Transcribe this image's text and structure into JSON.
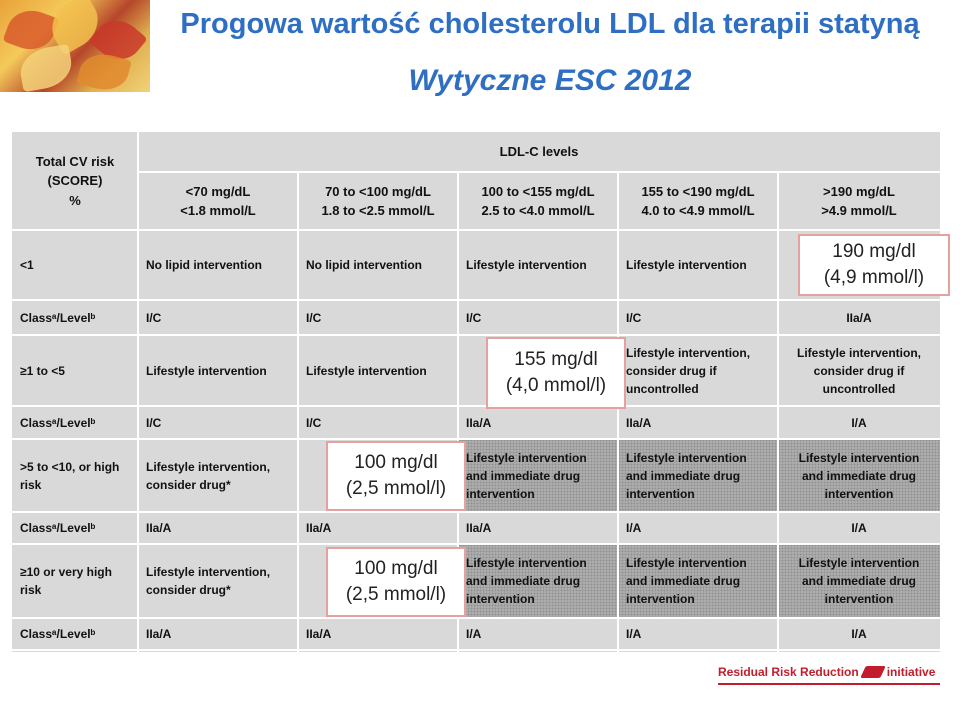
{
  "header": {
    "title": "Progowa wartość cholesterolu LDL dla terapii statyną",
    "subtitle": "Wytyczne ESC 2012"
  },
  "table": {
    "risk_header": "Total CV risk\n(SCORE)\n%",
    "ldl_header": "LDL-C levels",
    "columns": [
      "<70 mg/dL\n<1.8 mmol/L",
      "70 to <100 mg/dL\n1.8 to <2.5 mmol/L",
      "100 to <155 mg/dL\n2.5 to <4.0 mmol/L",
      "155 to <190 mg/dL\n4.0 to <4.9 mmol/L",
      ">190 mg/dL\n>4.9 mmol/L"
    ],
    "class_label": "Classᵃ/Levelᵇ",
    "rows": [
      {
        "risk": "<1",
        "cells": [
          "No lipid intervention",
          "No lipid intervention",
          "Lifestyle intervention",
          "Lifestyle intervention",
          ""
        ],
        "classes": [
          "I/C",
          "I/C",
          "I/C",
          "I/C",
          "IIa/A"
        ]
      },
      {
        "risk": "≥1 to <5",
        "cells": [
          "Lifestyle intervention",
          "Lifestyle intervention",
          "",
          "Lifestyle intervention,\nconsider drug if\nuncontrolled",
          "Lifestyle intervention,\nconsider drug if\nuncontrolled"
        ],
        "classes": [
          "I/C",
          "I/C",
          "IIa/A",
          "IIa/A",
          "I/A"
        ]
      },
      {
        "risk": ">5 to <10, or high\nrisk",
        "cells": [
          "Lifestyle intervention,\nconsider drug*",
          "",
          "Lifestyle intervention\nand immediate drug\nintervention",
          "Lifestyle intervention\nand immediate drug\nintervention",
          "Lifestyle intervention\nand immediate drug\nintervention"
        ],
        "classes": [
          "IIa/A",
          "IIa/A",
          "IIa/A",
          "I/A",
          "I/A"
        ]
      },
      {
        "risk": "≥10 or very high\nrisk",
        "cells": [
          "Lifestyle intervention,\nconsider drug*",
          "",
          "Lifestyle intervention\nand immediate drug\nintervention",
          "Lifestyle intervention\nand immediate drug\nintervention",
          "Lifestyle intervention\nand immediate drug\nintervention"
        ],
        "classes": [
          "IIa/A",
          "IIa/A",
          "I/A",
          "I/A",
          "I/A"
        ]
      }
    ]
  },
  "annotations": [
    "190 mg/dl\n(4,9 mmol/l)",
    "155 mg/dl\n(4,0 mmol/l)",
    "100 mg/dl\n(2,5 mmol/l)",
    "100 mg/dl\n(2,5 mmol/l)"
  ],
  "footer": {
    "logo_left": "Residual Risk Reduction",
    "logo_right": "initiative"
  },
  "colors": {
    "title": "#2e6fc4",
    "table_bg": "#d9d9d9",
    "shaded": "#b3b3b3",
    "annotation_border": "#e6a0a0",
    "logo": "#c31d2d"
  }
}
